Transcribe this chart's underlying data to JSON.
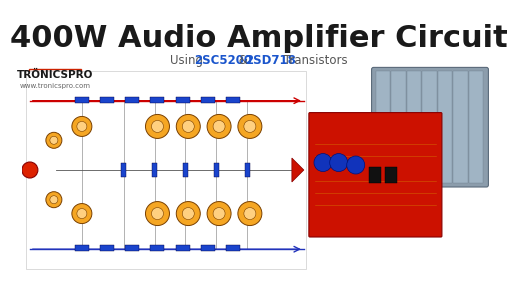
{
  "title": "400W Audio Amplifier Circuit",
  "subtitle_using": "Using ",
  "subtitle_part1": "2SC5200",
  "subtitle_mid": " & ",
  "subtitle_part2": "2SD718",
  "subtitle_end": " Transistors",
  "brand_text": "TRÖNICSPRO",
  "website": "www.tronicspro.com",
  "bg_color": "#ffffff",
  "title_color": "#1a1a1a",
  "subtitle_color": "#555555",
  "highlight_color": "#1a55cc",
  "brand_box_color": "#cc2200",
  "title_fontsize": 22,
  "subtitle_fontsize": 8.5,
  "brand_fontsize": 7.5,
  "transistor_fill": "#f5a623",
  "transistor_edge": "#7a4000",
  "transistor_inner": "#ffd080",
  "wire_red": "#cc0000",
  "wire_blue": "#2233bb",
  "component_blue": "#1a44cc",
  "bg_circuit": "#ffffff",
  "circuit_border": "#cccccc",
  "heatsink_color": "#8899aa",
  "pcb_red": "#cc1100",
  "speaker_color": "#cc1100"
}
